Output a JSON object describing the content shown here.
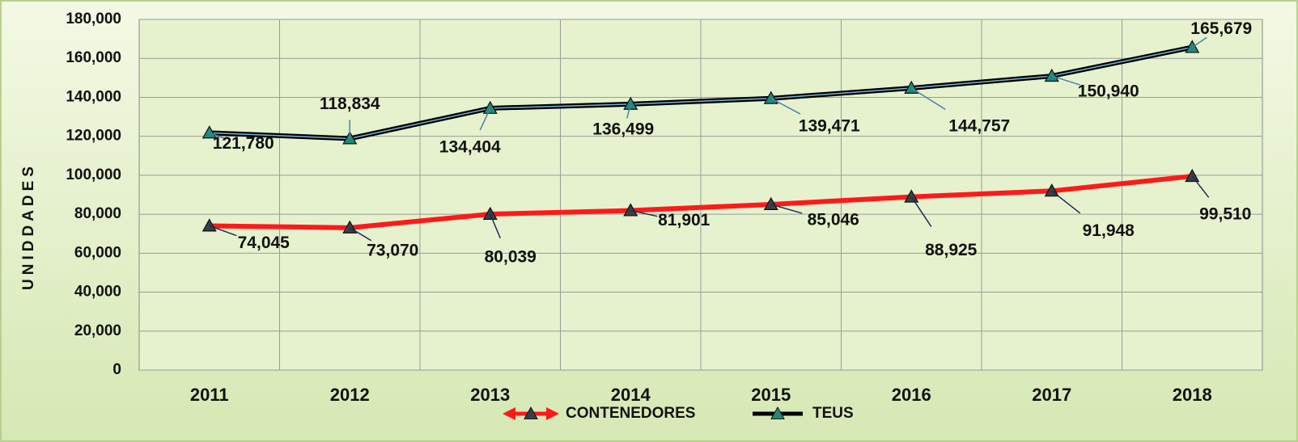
{
  "chart_data": {
    "type": "line",
    "y_label": "UNIDDADES",
    "categories": [
      "2011",
      "2012",
      "2013",
      "2014",
      "2015",
      "2016",
      "2017",
      "2018"
    ],
    "series": [
      {
        "name": "CONTENEDORES",
        "color": "#ff1a1a",
        "marker_color": "#3a3f44",
        "values": [
          74045,
          73070,
          80039,
          81901,
          85046,
          88925,
          91948,
          99510
        ],
        "value_labels": [
          "74,045",
          "73,070",
          "80,039",
          "81,901",
          "85,046",
          "88,925",
          "91,948",
          "99,510"
        ]
      },
      {
        "name": "TEUS",
        "color": "#000000",
        "marker_color": "#1f8a78",
        "values": [
          121780,
          118834,
          134404,
          136499,
          139471,
          144757,
          150940,
          165679
        ],
        "value_labels": [
          "121,780",
          "118,834",
          "134,404",
          "136,499",
          "139,471",
          "144,757",
          "150,940",
          "165,679"
        ]
      }
    ],
    "ylim": [
      0,
      180000
    ],
    "yticks": [
      0,
      {
        "value": 20000,
        "label": "20,000"
      },
      {
        "value": 40000,
        "label": "40,000"
      },
      {
        "value": 60000,
        "label": "60,000"
      },
      {
        "value": 80000,
        "label": "80,000"
      },
      {
        "value": 100000,
        "label": "100,000"
      },
      {
        "value": 120000,
        "label": "120,000"
      },
      {
        "value": 140000,
        "label": "140,000"
      },
      {
        "value": 160000,
        "label": "160,000"
      },
      {
        "value": 180000,
        "label": "180,000"
      }
    ],
    "grid": true
  }
}
